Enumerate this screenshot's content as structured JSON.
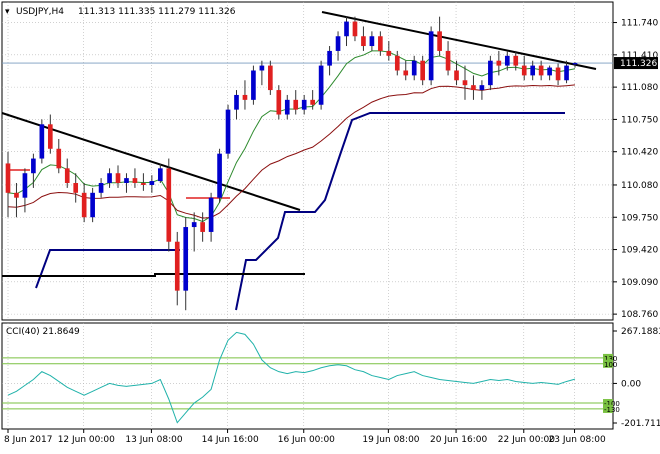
{
  "header": {
    "symbol_timeframe": "USDJPY,H4",
    "ohlc": "111.313 111.335 111.279 111.326"
  },
  "price_panel": {
    "y_ticks": [
      "111.740",
      "111.410",
      "111.080",
      "110.750",
      "110.420",
      "110.080",
      "109.750",
      "109.420",
      "109.090",
      "108.760"
    ],
    "current_price": "111.326"
  },
  "cci_panel": {
    "title": "CCI(40) 21.8649",
    "y_ticks": [
      "267.1883",
      "0.00",
      "-201.711"
    ],
    "level_labels": [
      "130",
      "100",
      "-100",
      "-130"
    ]
  },
  "x_axis": {
    "labels": [
      "8 Jun 2017",
      "12 Jun 00:00",
      "13 Jun 08:00",
      "14 Jun 16:00",
      "16 Jun 00:00",
      "19 Jun 08:00",
      "20 Jun 16:00",
      "22 Jun 00:00",
      "23 Jun 08:00"
    ]
  },
  "colors": {
    "bull": "#0000cd",
    "bear": "#e02020",
    "ma_fast": "#2e8b2e",
    "ma_slow": "#8b1010",
    "channel": "#000080",
    "trend": "#000000",
    "cci": "#20b2aa",
    "cci_levels": "#7ac142",
    "grid": "#b4b4b4"
  },
  "chart_data": {
    "type": "candlestick",
    "timeframe": "H4",
    "symbol": "USDJPY",
    "candles": [
      {
        "o": 110.3,
        "h": 110.42,
        "l": 109.75,
        "c": 110.0
      },
      {
        "o": 110.0,
        "h": 110.1,
        "l": 109.75,
        "c": 109.95
      },
      {
        "o": 109.95,
        "h": 110.25,
        "l": 109.8,
        "c": 110.2
      },
      {
        "o": 110.2,
        "h": 110.4,
        "l": 110.05,
        "c": 110.35
      },
      {
        "o": 110.35,
        "h": 110.75,
        "l": 110.3,
        "c": 110.7
      },
      {
        "o": 110.7,
        "h": 110.8,
        "l": 110.4,
        "c": 110.45
      },
      {
        "o": 110.45,
        "h": 110.55,
        "l": 110.2,
        "c": 110.25
      },
      {
        "o": 110.25,
        "h": 110.35,
        "l": 110.05,
        "c": 110.1
      },
      {
        "o": 110.1,
        "h": 110.2,
        "l": 109.9,
        "c": 110.0
      },
      {
        "o": 110.0,
        "h": 110.1,
        "l": 109.7,
        "c": 109.75
      },
      {
        "o": 109.75,
        "h": 110.05,
        "l": 109.7,
        "c": 110.0
      },
      {
        "o": 110.0,
        "h": 110.15,
        "l": 109.95,
        "c": 110.1
      },
      {
        "o": 110.1,
        "h": 110.25,
        "l": 110.05,
        "c": 110.2
      },
      {
        "o": 110.2,
        "h": 110.28,
        "l": 110.05,
        "c": 110.1
      },
      {
        "o": 110.1,
        "h": 110.2,
        "l": 110.0,
        "c": 110.15
      },
      {
        "o": 110.15,
        "h": 110.25,
        "l": 110.05,
        "c": 110.1
      },
      {
        "o": 110.1,
        "h": 110.2,
        "l": 110.02,
        "c": 110.08
      },
      {
        "o": 110.08,
        "h": 110.18,
        "l": 110.0,
        "c": 110.12
      },
      {
        "o": 110.12,
        "h": 110.3,
        "l": 110.1,
        "c": 110.25
      },
      {
        "o": 110.25,
        "h": 110.35,
        "l": 109.4,
        "c": 109.5
      },
      {
        "o": 109.5,
        "h": 109.6,
        "l": 108.85,
        "c": 109.0
      },
      {
        "o": 109.0,
        "h": 109.75,
        "l": 108.8,
        "c": 109.65
      },
      {
        "o": 109.65,
        "h": 109.8,
        "l": 109.4,
        "c": 109.7
      },
      {
        "o": 109.7,
        "h": 109.8,
        "l": 109.5,
        "c": 109.6
      },
      {
        "o": 109.6,
        "h": 110.0,
        "l": 109.5,
        "c": 109.95
      },
      {
        "o": 109.95,
        "h": 110.45,
        "l": 109.9,
        "c": 110.4
      },
      {
        "o": 110.4,
        "h": 110.9,
        "l": 110.35,
        "c": 110.85
      },
      {
        "o": 110.85,
        "h": 111.05,
        "l": 110.75,
        "c": 111.0
      },
      {
        "o": 111.0,
        "h": 111.15,
        "l": 110.85,
        "c": 110.95
      },
      {
        "o": 110.95,
        "h": 111.3,
        "l": 110.9,
        "c": 111.25
      },
      {
        "o": 111.25,
        "h": 111.35,
        "l": 111.1,
        "c": 111.3
      },
      {
        "o": 111.3,
        "h": 111.35,
        "l": 111.0,
        "c": 111.05
      },
      {
        "o": 111.05,
        "h": 111.1,
        "l": 110.75,
        "c": 110.8
      },
      {
        "o": 110.8,
        "h": 111.0,
        "l": 110.75,
        "c": 110.95
      },
      {
        "o": 110.95,
        "h": 111.05,
        "l": 110.8,
        "c": 110.85
      },
      {
        "o": 110.85,
        "h": 111.0,
        "l": 110.8,
        "c": 110.95
      },
      {
        "o": 110.95,
        "h": 111.05,
        "l": 110.85,
        "c": 110.9
      },
      {
        "o": 110.9,
        "h": 111.35,
        "l": 110.85,
        "c": 111.3
      },
      {
        "o": 111.3,
        "h": 111.5,
        "l": 111.2,
        "c": 111.45
      },
      {
        "o": 111.45,
        "h": 111.65,
        "l": 111.35,
        "c": 111.6
      },
      {
        "o": 111.6,
        "h": 111.8,
        "l": 111.5,
        "c": 111.75
      },
      {
        "o": 111.75,
        "h": 111.8,
        "l": 111.55,
        "c": 111.6
      },
      {
        "o": 111.6,
        "h": 111.7,
        "l": 111.45,
        "c": 111.5
      },
      {
        "o": 111.5,
        "h": 111.65,
        "l": 111.45,
        "c": 111.6
      },
      {
        "o": 111.6,
        "h": 111.65,
        "l": 111.4,
        "c": 111.45
      },
      {
        "o": 111.45,
        "h": 111.55,
        "l": 111.35,
        "c": 111.4
      },
      {
        "o": 111.4,
        "h": 111.45,
        "l": 111.2,
        "c": 111.25
      },
      {
        "o": 111.25,
        "h": 111.35,
        "l": 111.15,
        "c": 111.2
      },
      {
        "o": 111.2,
        "h": 111.4,
        "l": 111.15,
        "c": 111.35
      },
      {
        "o": 111.35,
        "h": 111.4,
        "l": 111.1,
        "c": 111.15
      },
      {
        "o": 111.15,
        "h": 111.7,
        "l": 111.1,
        "c": 111.65
      },
      {
        "o": 111.65,
        "h": 111.8,
        "l": 111.4,
        "c": 111.45
      },
      {
        "o": 111.45,
        "h": 111.55,
        "l": 111.2,
        "c": 111.25
      },
      {
        "o": 111.25,
        "h": 111.35,
        "l": 111.1,
        "c": 111.15
      },
      {
        "o": 111.15,
        "h": 111.3,
        "l": 110.95,
        "c": 111.1
      },
      {
        "o": 111.1,
        "h": 111.2,
        "l": 110.95,
        "c": 111.05
      },
      {
        "o": 111.05,
        "h": 111.15,
        "l": 110.95,
        "c": 111.1
      },
      {
        "o": 111.1,
        "h": 111.4,
        "l": 111.05,
        "c": 111.35
      },
      {
        "o": 111.35,
        "h": 111.45,
        "l": 111.2,
        "c": 111.3
      },
      {
        "o": 111.3,
        "h": 111.45,
        "l": 111.25,
        "c": 111.4
      },
      {
        "o": 111.4,
        "h": 111.45,
        "l": 111.25,
        "c": 111.3
      },
      {
        "o": 111.3,
        "h": 111.4,
        "l": 111.15,
        "c": 111.2
      },
      {
        "o": 111.2,
        "h": 111.35,
        "l": 111.15,
        "c": 111.3
      },
      {
        "o": 111.3,
        "h": 111.35,
        "l": 111.15,
        "c": 111.2
      },
      {
        "o": 111.2,
        "h": 111.3,
        "l": 111.15,
        "c": 111.28
      },
      {
        "o": 111.28,
        "h": 111.32,
        "l": 111.1,
        "c": 111.15
      },
      {
        "o": 111.15,
        "h": 111.35,
        "l": 111.12,
        "c": 111.3
      },
      {
        "o": 111.313,
        "h": 111.335,
        "l": 111.279,
        "c": 111.326
      }
    ],
    "cci": [
      -60,
      -40,
      -10,
      20,
      60,
      40,
      10,
      -20,
      -40,
      -60,
      -40,
      -20,
      0,
      -10,
      -15,
      -10,
      -5,
      0,
      20,
      -80,
      -200,
      -150,
      -100,
      -70,
      -30,
      120,
      220,
      260,
      250,
      200,
      120,
      80,
      60,
      50,
      60,
      55,
      65,
      80,
      90,
      95,
      90,
      70,
      60,
      40,
      30,
      20,
      40,
      50,
      60,
      40,
      30,
      20,
      15,
      10,
      5,
      0,
      10,
      20,
      15,
      20,
      10,
      5,
      0,
      5,
      0,
      -5,
      10,
      22
    ],
    "cci_levels": [
      130,
      100,
      -100,
      -130
    ],
    "cci_range": [
      -201.711,
      267.1883
    ],
    "y_range": [
      108.7,
      111.95
    ]
  }
}
